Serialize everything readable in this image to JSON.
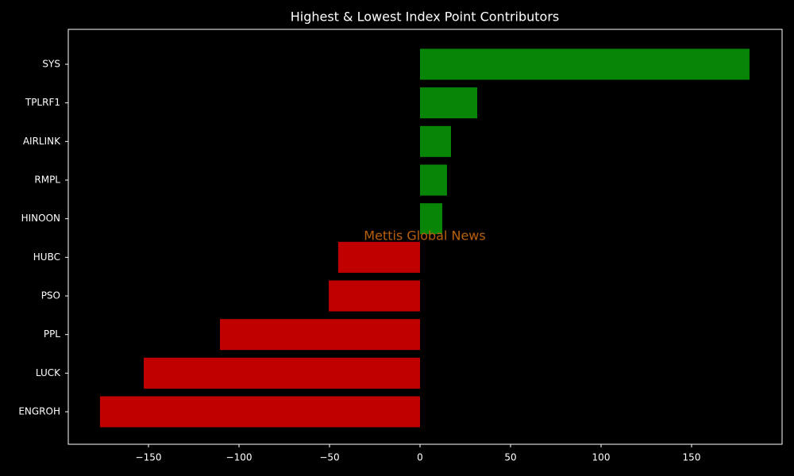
{
  "chart_data": {
    "type": "barh",
    "title": "Highest & Lowest Index Point Contributors",
    "categories": [
      "SYS",
      "TPLRF1",
      "AIRLINK",
      "RMPL",
      "HINOON",
      "HUBC",
      "PSO",
      "PPL",
      "LUCK",
      "ENGROH"
    ],
    "values": [
      182,
      31.6,
      17.1,
      14.9,
      12.3,
      -45.2,
      -50.4,
      -110.5,
      -152.6,
      -176.8
    ],
    "colors": [
      "#078507",
      "#078507",
      "#078507",
      "#078507",
      "#078507",
      "#c00000",
      "#c00000",
      "#c00000",
      "#c00000",
      "#c00000"
    ],
    "xlim": [
      -194.3,
      200
    ],
    "xticks": [
      {
        "value": -150,
        "label": "−150"
      },
      {
        "value": -100,
        "label": "−100"
      },
      {
        "value": -50,
        "label": "−50"
      },
      0,
      50,
      100,
      150
    ],
    "annotation": "Mettis Global News",
    "grid": false
  }
}
